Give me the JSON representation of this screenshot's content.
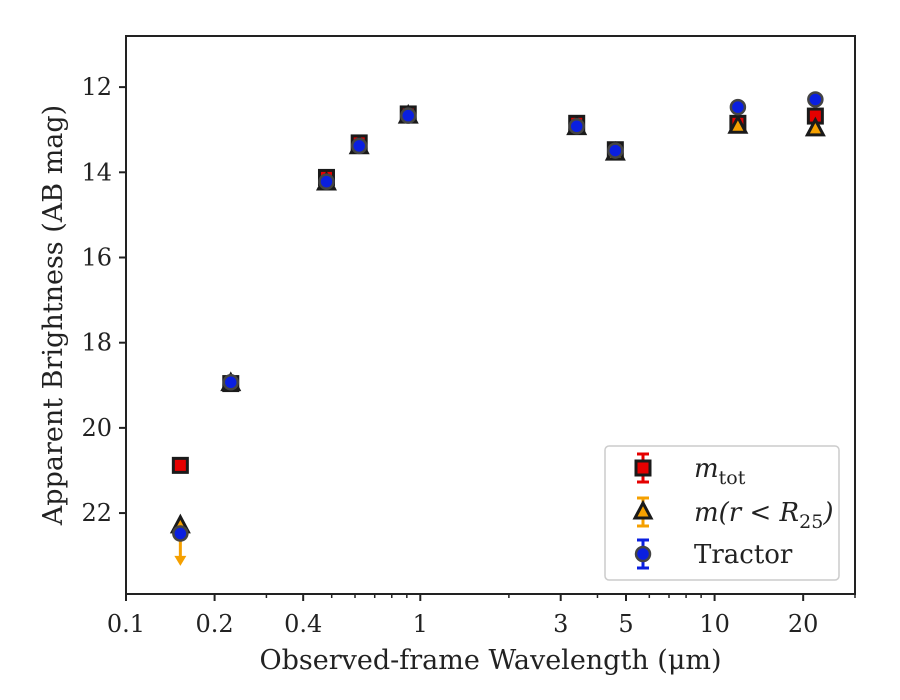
{
  "chart_data": {
    "type": "scatter",
    "title": "",
    "xlabel": "Observed-frame Wavelength (μm)",
    "ylabel": "Apparent Brightness (AB mag)",
    "xscale": "log",
    "xlim": [
      0.1,
      30
    ],
    "ylim": [
      23.9,
      10.8
    ],
    "y_inverted": true,
    "xticks": [
      {
        "value": 0.1,
        "label": "0.1"
      },
      {
        "value": 0.2,
        "label": "0.2"
      },
      {
        "value": 0.4,
        "label": "0.4"
      },
      {
        "value": 1,
        "label": "1"
      },
      {
        "value": 3,
        "label": "3"
      },
      {
        "value": 5,
        "label": "5"
      },
      {
        "value": 10,
        "label": "10"
      },
      {
        "value": 20,
        "label": "20"
      }
    ],
    "yticks": [
      12,
      14,
      16,
      18,
      20,
      22
    ],
    "grid": false,
    "legend_position": "lower right",
    "series": [
      {
        "name": "m_tot",
        "legend_label_main": "m",
        "legend_label_sub": "tot",
        "marker": "square",
        "color": "#e50000",
        "edgecolor": "#1a1a1a",
        "points": [
          {
            "x": 0.153,
            "y": 20.88
          },
          {
            "x": 0.227,
            "y": 18.96
          },
          {
            "x": 0.48,
            "y": 14.12
          },
          {
            "x": 0.62,
            "y": 13.31
          },
          {
            "x": 0.91,
            "y": 12.63
          },
          {
            "x": 3.4,
            "y": 12.85
          },
          {
            "x": 4.6,
            "y": 13.47
          },
          {
            "x": 12.0,
            "y": 12.85
          },
          {
            "x": 22.0,
            "y": 12.68
          }
        ]
      },
      {
        "name": "m(r < R25)",
        "legend_label_main": "m(r < R",
        "legend_label_sub": "25",
        "legend_label_tail": ")",
        "marker": "triangle",
        "color": "#f5a000",
        "edgecolor": "#1a1a1a",
        "points": [
          {
            "x": 0.153,
            "y": 22.3,
            "upper_limit": true
          },
          {
            "x": 0.227,
            "y": 18.96
          },
          {
            "x": 0.48,
            "y": 14.25
          },
          {
            "x": 0.62,
            "y": 13.4
          },
          {
            "x": 0.91,
            "y": 12.68
          },
          {
            "x": 3.4,
            "y": 12.95
          },
          {
            "x": 4.6,
            "y": 13.55
          },
          {
            "x": 12.0,
            "y": 12.92
          },
          {
            "x": 22.0,
            "y": 12.98
          }
        ]
      },
      {
        "name": "Tractor",
        "legend_label_main": "Tractor",
        "marker": "circle",
        "color": "#0a1fe0",
        "edgecolor": "#444444",
        "points": [
          {
            "x": 0.153,
            "y": 22.48
          },
          {
            "x": 0.227,
            "y": 18.93
          },
          {
            "x": 0.48,
            "y": 14.22
          },
          {
            "x": 0.62,
            "y": 13.38
          },
          {
            "x": 0.91,
            "y": 12.67
          },
          {
            "x": 3.4,
            "y": 12.92
          },
          {
            "x": 4.6,
            "y": 13.49
          },
          {
            "x": 12.0,
            "y": 12.47
          },
          {
            "x": 22.0,
            "y": 12.29
          }
        ]
      }
    ]
  }
}
